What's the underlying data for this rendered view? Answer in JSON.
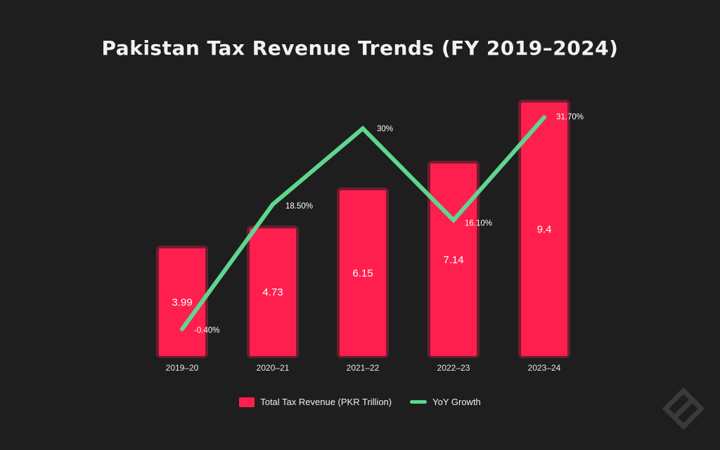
{
  "title": "Pakistan Tax Revenue Trends (FY 2019–2024)",
  "colors": {
    "background": "#1e1e1e",
    "bar": "#ff1f4f",
    "line": "#5fd68f",
    "text": "#f2f2f2"
  },
  "legend": {
    "bar_label": "Total Tax Revenue (PKR Trillion)",
    "line_label": "YoY Growth",
    "placement": "bottom-center"
  },
  "watermark_icon": "logo-mark-icon",
  "chart_data": {
    "type": "bar",
    "categories": [
      "2019–20",
      "2020–21",
      "2021–22",
      "2022–23",
      "2023–24"
    ],
    "series": [
      {
        "name": "Total Tax Revenue (PKR Trillion)",
        "type": "bar",
        "values": [
          3.99,
          4.73,
          6.15,
          7.14,
          9.4
        ],
        "labels": [
          "3.99",
          "4.73",
          "6.15",
          "7.14",
          "9.4"
        ]
      },
      {
        "name": "YoY Growth",
        "type": "line",
        "values": [
          -0.4,
          18.5,
          30,
          16.1,
          31.7
        ],
        "labels": [
          "-0.40%",
          "18.50%",
          "30%",
          "16.10%",
          "31.70%"
        ]
      }
    ],
    "xlabel": "",
    "ylabel": "",
    "grid": false,
    "legend_position": "bottom"
  }
}
